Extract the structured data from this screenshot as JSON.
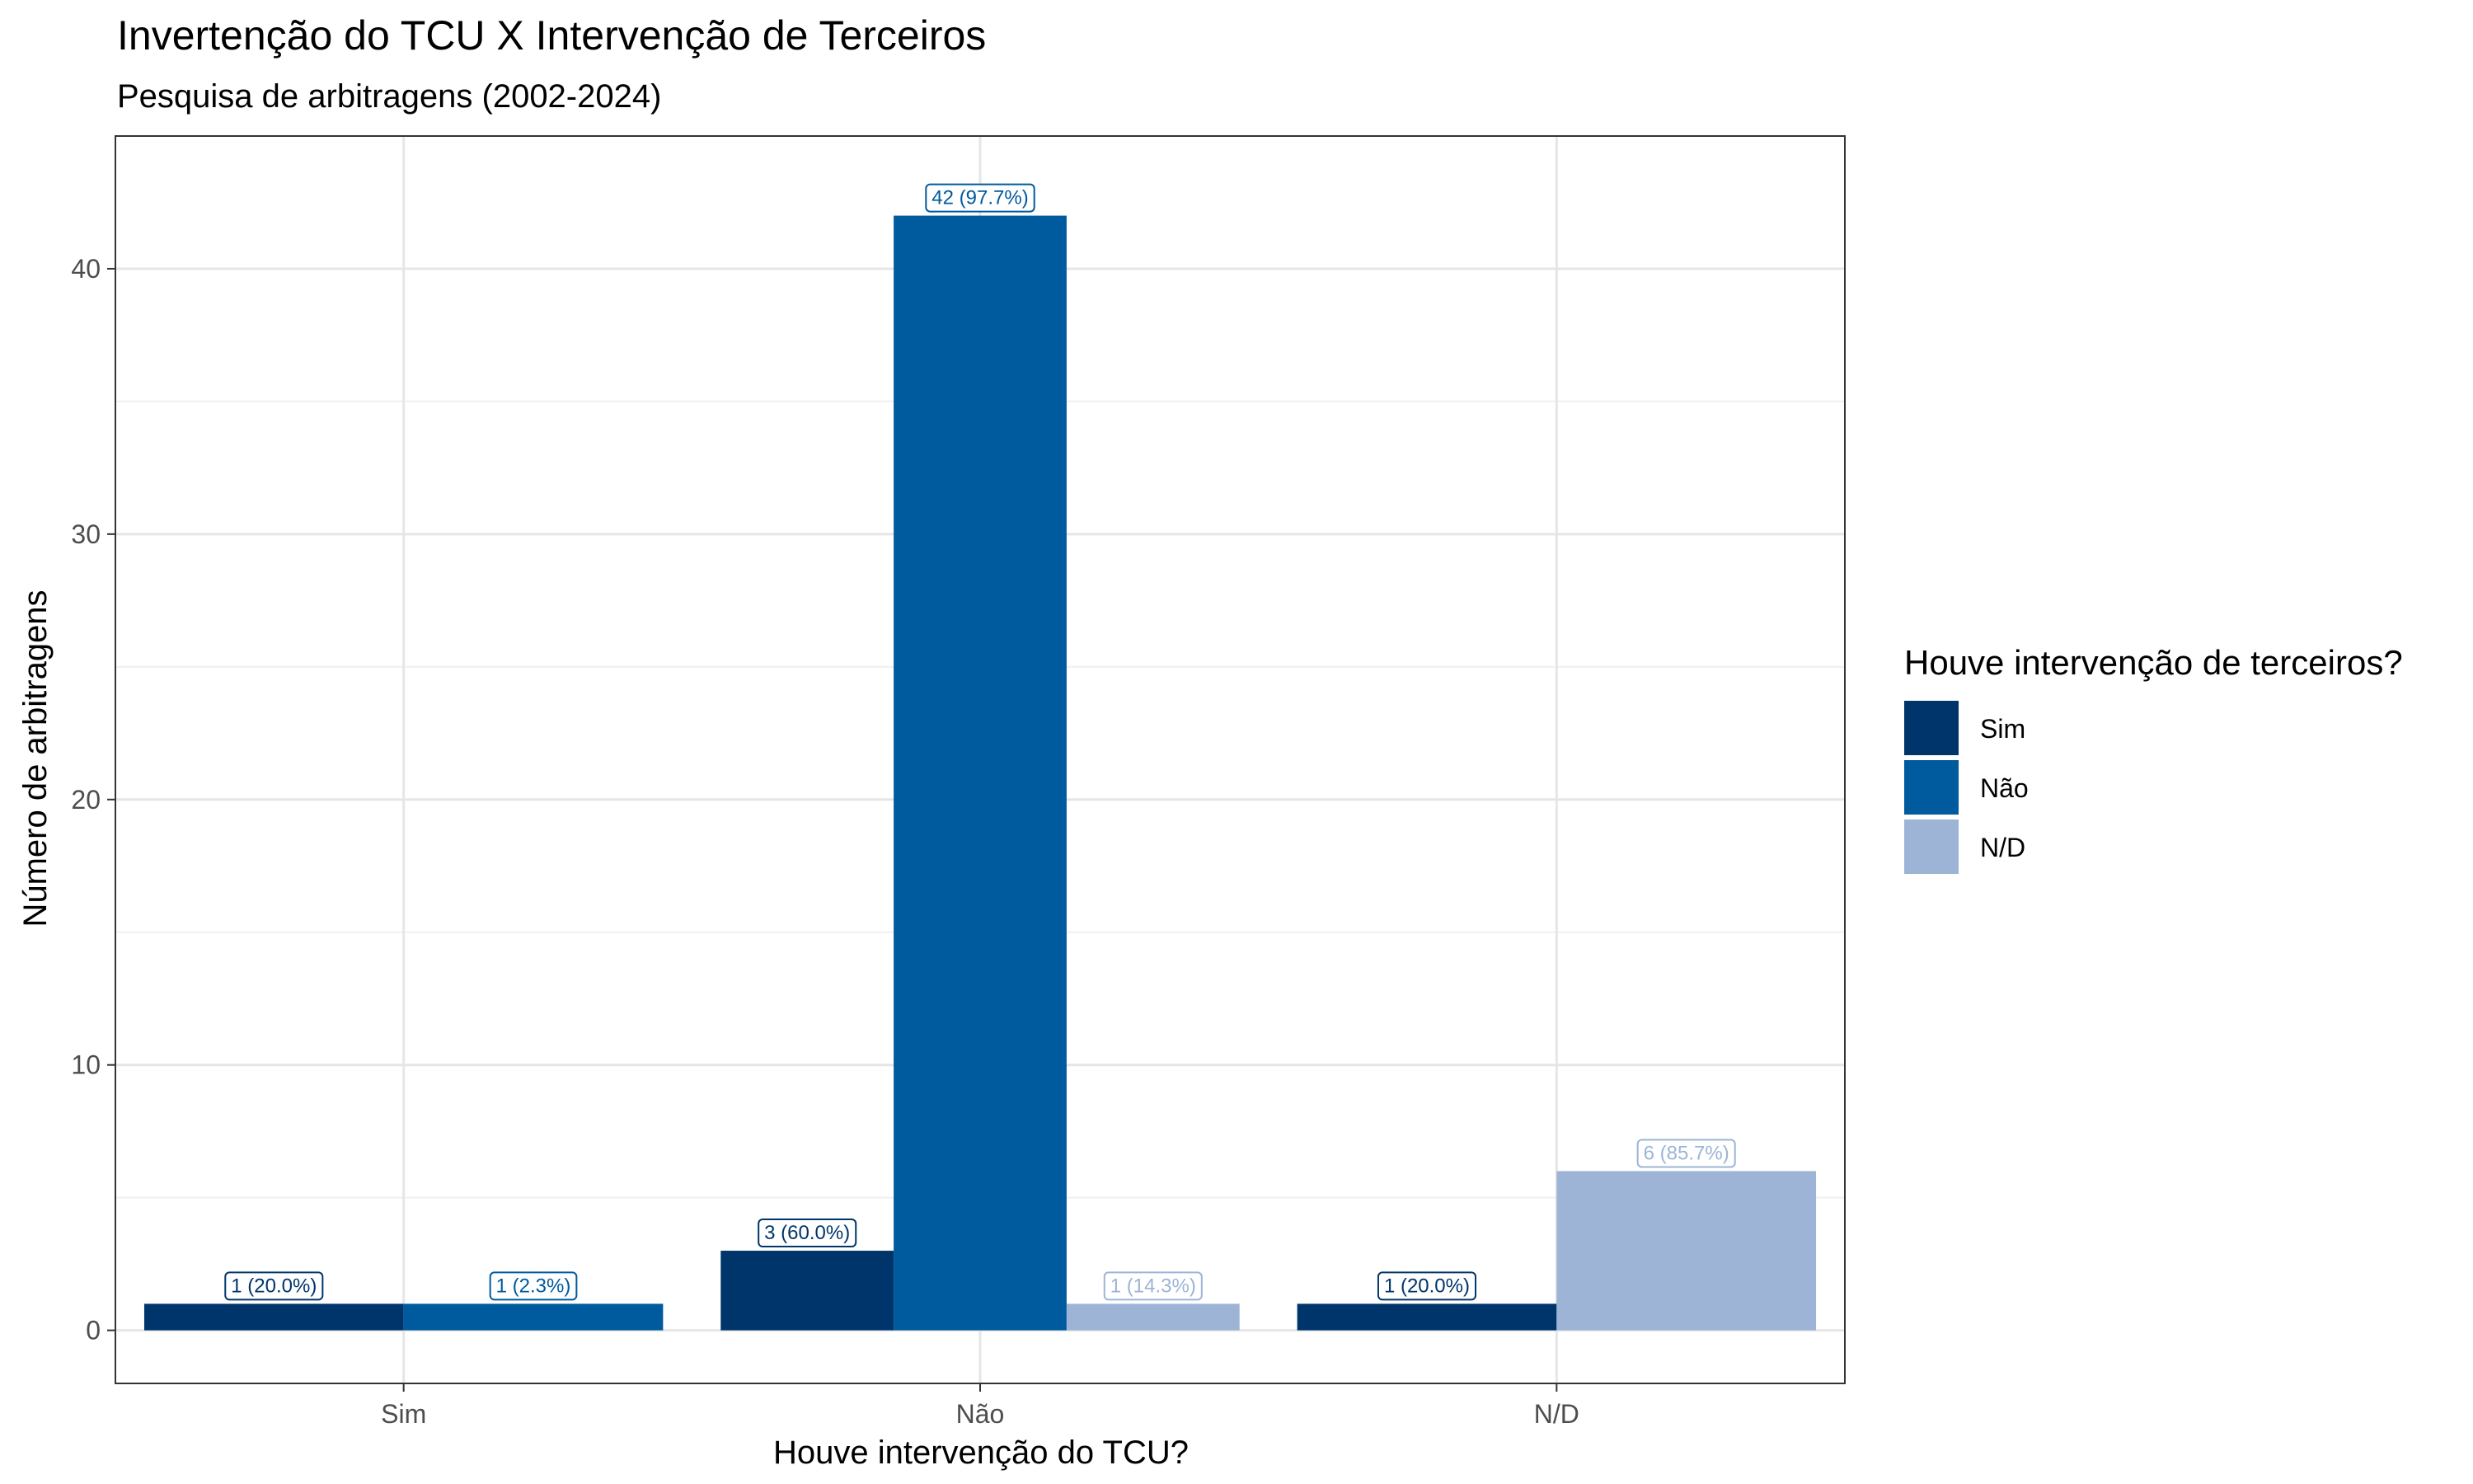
{
  "chart_data": {
    "type": "bar",
    "title": "Invertenção do TCU X Intervenção de Terceiros",
    "subtitle": "Pesquisa de arbitragens (2002-2024)",
    "xlabel": "Houve intervenção do TCU?",
    "ylabel": "Número de arbitragens",
    "categories": [
      "Sim",
      "Não",
      "N/D"
    ],
    "ylim": [
      -2,
      45
    ],
    "yticks": [
      0,
      10,
      20,
      30,
      40
    ],
    "grid": true,
    "legend": {
      "title": "Houve intervenção de terceiros?",
      "position": "right"
    },
    "series": [
      {
        "name": "Sim",
        "color": "#00356B",
        "values": [
          1,
          3,
          1
        ],
        "labels": [
          "1 (20.0%)",
          "3 (60.0%)",
          "1 (20.0%)"
        ]
      },
      {
        "name": "Não",
        "color": "#005A9E",
        "values": [
          1,
          42,
          null
        ],
        "labels": [
          "1 (2.3%)",
          "42 (97.7%)",
          null
        ]
      },
      {
        "name": "N/D",
        "color": "#9DB4D6",
        "values": [
          null,
          1,
          6
        ],
        "labels": [
          null,
          "1 (14.3%)",
          "6 (85.7%)"
        ]
      }
    ]
  }
}
